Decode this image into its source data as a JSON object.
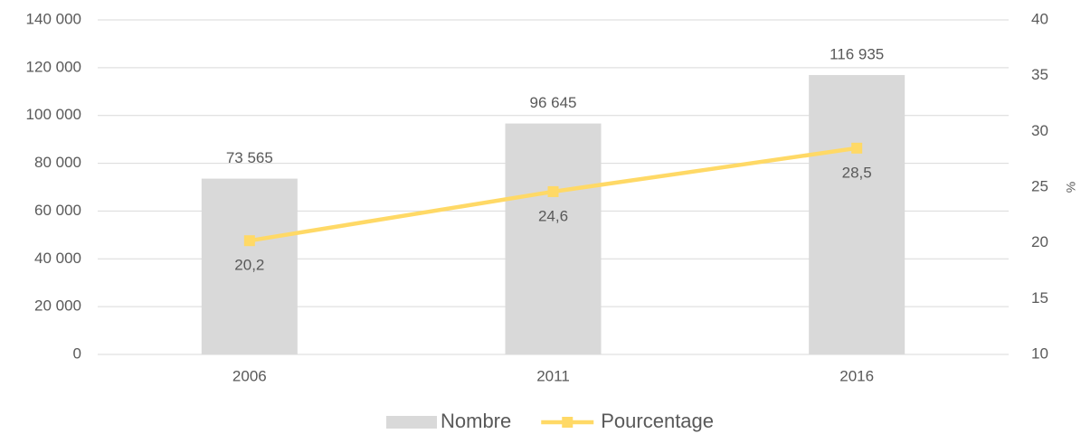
{
  "chart_data": {
    "type": "bar",
    "categories": [
      "2006",
      "2011",
      "2016"
    ],
    "series": [
      {
        "name": "Nombre",
        "type": "bar",
        "color": "#d9d9d9",
        "values": [
          73565,
          96645,
          116935
        ],
        "value_labels": [
          "73 565",
          "96 645",
          "116 935"
        ]
      },
      {
        "name": "Pourcentage",
        "type": "line",
        "axis": "y2",
        "color": "#ffd966",
        "values": [
          20.2,
          24.6,
          28.5
        ],
        "value_labels": [
          "20,2",
          "24,6",
          "28,5"
        ]
      }
    ],
    "ylim": [
      0,
      140000
    ],
    "yticks": [
      0,
      {
        "value": 20000,
        "label": "20 000"
      },
      {
        "value": 40000,
        "label": "40 000"
      },
      {
        "value": 60000,
        "label": "60 000"
      },
      {
        "value": 80000,
        "label": "80 000"
      },
      {
        "value": 100000,
        "label": "100 000"
      },
      {
        "value": 120000,
        "label": "120 000"
      },
      {
        "value": 140000,
        "label": "140 000"
      }
    ],
    "y2lim": [
      10,
      40
    ],
    "y2ticks": [
      10,
      15,
      20,
      25,
      30,
      35,
      40
    ],
    "y2label": "%",
    "grid": true,
    "legend": "bottom"
  }
}
